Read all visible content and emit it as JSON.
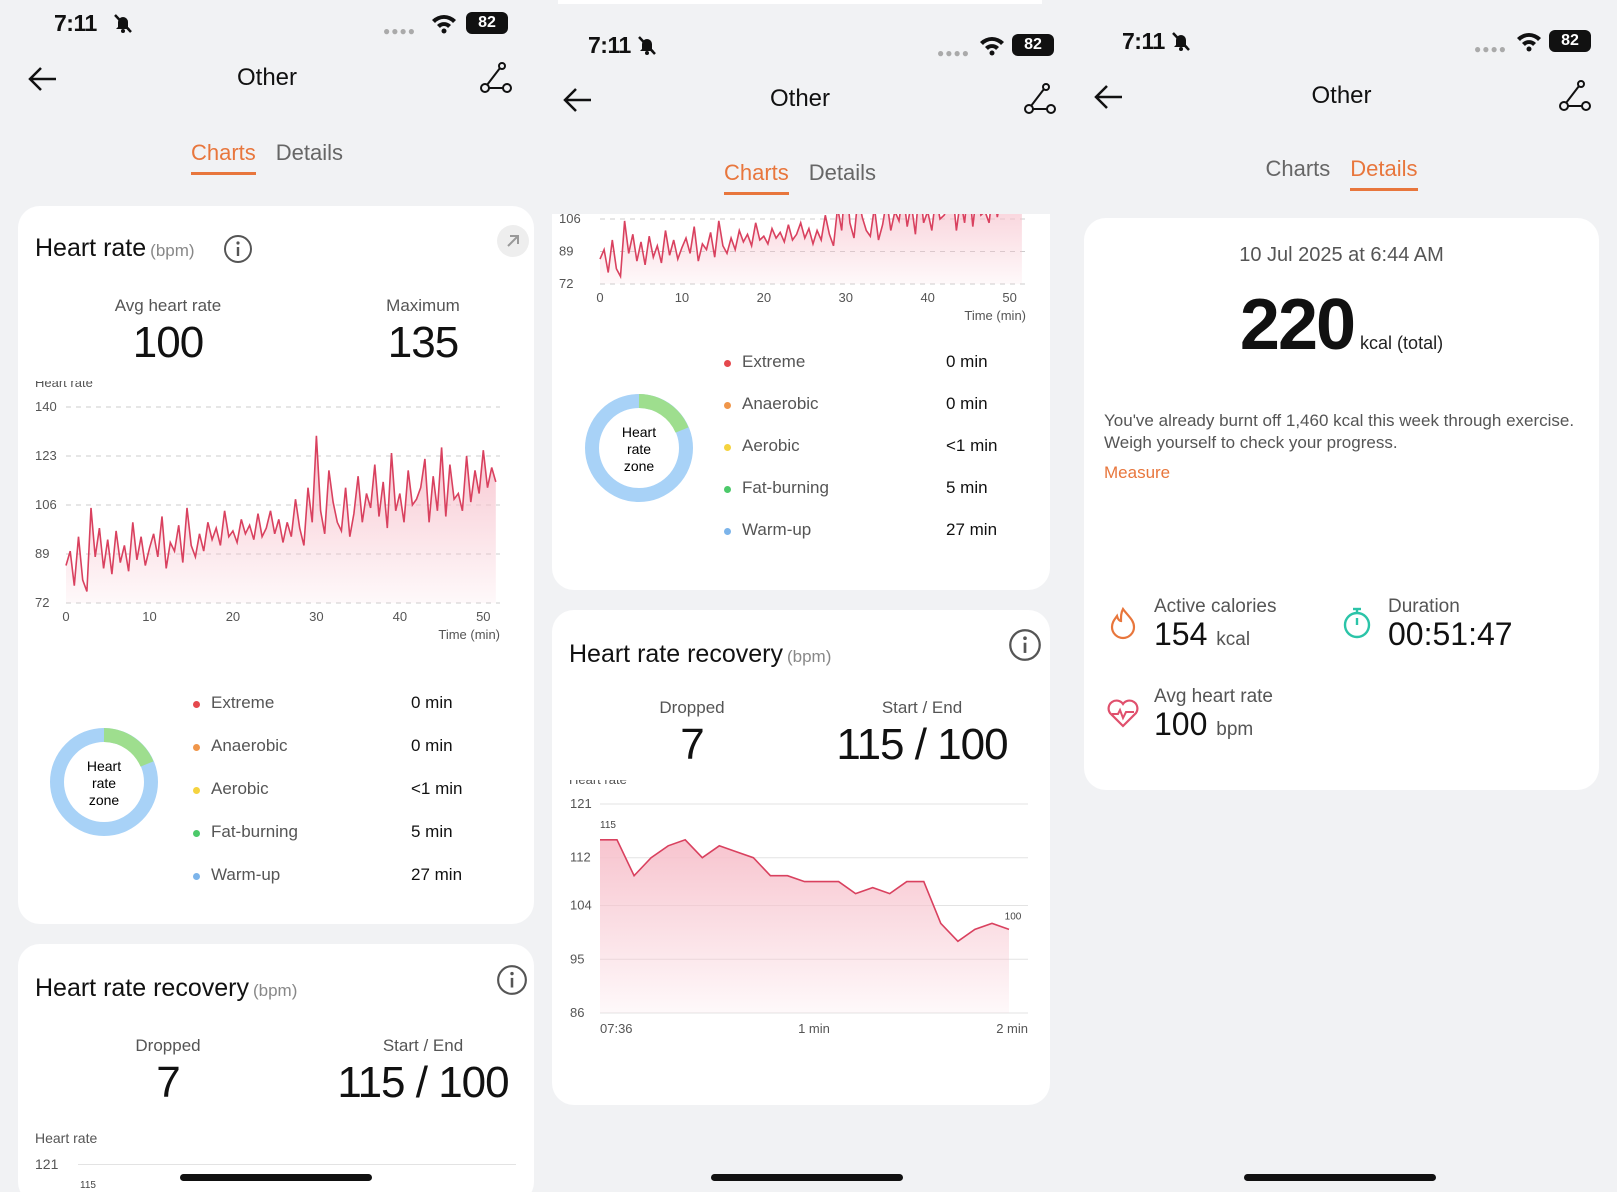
{
  "status": {
    "time": "7:11",
    "battery": "82"
  },
  "nav": {
    "title": "Other"
  },
  "tabs": {
    "charts": "Charts",
    "details": "Details"
  },
  "heart_rate": {
    "title": "Heart rate",
    "unit": "(bpm)",
    "avg_label": "Avg heart rate",
    "avg_value": "100",
    "max_label": "Maximum",
    "max_value": "135",
    "chart_label": "Heart rate",
    "x_axis_unit": "Time (min)"
  },
  "zones": {
    "donut_label_1": "Heart",
    "donut_label_2": "rate",
    "donut_label_3": "zone",
    "items": [
      {
        "name": "Extreme",
        "value": "0 min",
        "color": "#e5484d"
      },
      {
        "name": "Anaerobic",
        "value": "0 min",
        "color": "#f0964a"
      },
      {
        "name": "Aerobic",
        "value": "<1 min",
        "color": "#f5d33f"
      },
      {
        "name": "Fat-burning",
        "value": "5 min",
        "color": "#4cc96a"
      },
      {
        "name": "Warm-up",
        "value": "27 min",
        "color": "#7cb4ea"
      }
    ]
  },
  "recovery": {
    "title": "Heart rate recovery",
    "unit": "(bpm)",
    "dropped_label": "Dropped",
    "dropped_value": "7",
    "startend_label": "Start / End",
    "startend_value": "115 / 100",
    "chart_label": "Heart rate",
    "start_annotation": "115",
    "end_annotation": "100",
    "x_labels": [
      "07:36",
      "1 min",
      "2 min"
    ]
  },
  "details": {
    "date": "10 Jul 2025 at 6:44 AM",
    "total_kcal": "220",
    "total_unit": "kcal (total)",
    "progress_text": "You've already burnt off 1,460 kcal this week through exercise. Weigh yourself to check your progress.",
    "measure_link": "Measure",
    "active_label": "Active calories",
    "active_value": "154",
    "active_unit": "kcal",
    "duration_label": "Duration",
    "duration_value": "00:51:47",
    "avg_hr_label": "Avg heart rate",
    "avg_hr_value": "100",
    "avg_hr_unit": "bpm"
  },
  "colors": {
    "accent": "#e8763c",
    "line": "#d9415f",
    "fill": "#f7c1cc"
  },
  "chart_data": [
    {
      "type": "area",
      "title": "Heart rate",
      "ylabel": "Heart rate",
      "xlabel": "Time (min)",
      "ylim": [
        72,
        140
      ],
      "yticks": [
        72,
        89,
        106,
        123,
        140
      ],
      "xlim": [
        0,
        52
      ],
      "xticks": [
        0,
        10,
        20,
        30,
        40,
        50
      ],
      "grid": true,
      "series": [
        {
          "x": [
            0,
            0.5,
            1,
            1.5,
            2,
            2.5,
            3,
            3.5,
            4,
            4.5,
            5,
            5.5,
            6,
            6.5,
            7,
            7.5,
            8,
            8.5,
            9,
            9.5,
            10,
            10.5,
            11,
            11.5,
            12,
            12.5,
            13,
            13.5,
            14,
            14.5,
            15,
            15.5,
            16,
            16.5,
            17,
            17.5,
            18,
            18.5,
            19,
            19.5,
            20,
            20.5,
            21,
            21.5,
            22,
            22.5,
            23,
            23.5,
            24,
            24.5,
            25,
            25.5,
            26,
            26.5,
            27,
            27.5,
            28,
            28.5,
            29,
            29.5,
            30,
            30.5,
            31,
            31.5,
            32,
            32.5,
            33,
            33.5,
            34,
            34.5,
            35,
            35.5,
            36,
            36.5,
            37,
            37.5,
            38,
            38.5,
            39,
            39.5,
            40,
            40.5,
            41,
            41.5,
            42,
            42.5,
            43,
            43.5,
            44,
            44.5,
            45,
            45.5,
            46,
            46.5,
            47,
            47.5,
            48,
            48.5,
            49,
            49.5,
            50,
            50.5,
            51,
            51.5
          ],
          "y": [
            85,
            90,
            78,
            95,
            80,
            76,
            105,
            88,
            98,
            84,
            94,
            82,
            97,
            86,
            92,
            83,
            100,
            87,
            95,
            85,
            91,
            96,
            88,
            102,
            84,
            93,
            90,
            99,
            86,
            105,
            92,
            88,
            96,
            90,
            100,
            94,
            98,
            92,
            104,
            95,
            97,
            93,
            101,
            96,
            99,
            94,
            103,
            95,
            98,
            104,
            96,
            101,
            93,
            100,
            95,
            108,
            98,
            92,
            112,
            100,
            130,
            104,
            96,
            118,
            107,
            100,
            97,
            112,
            95,
            103,
            116,
            100,
            110,
            105,
            120,
            102,
            114,
            98,
            124,
            104,
            110,
            100,
            118,
            106,
            108,
            112,
            122,
            100,
            116,
            104,
            126,
            102,
            120,
            108,
            110,
            104,
            123,
            107,
            118,
            110,
            125,
            112,
            119,
            114
          ]
        }
      ]
    },
    {
      "type": "area",
      "title": "Heart rate recovery",
      "ylabel": "Heart rate",
      "ylim": [
        86,
        121
      ],
      "yticks": [
        86,
        95,
        104,
        112,
        121
      ],
      "x_labels": [
        "07:36",
        "1 min",
        "2 min"
      ],
      "grid": true,
      "series": [
        {
          "values": [
            115,
            115,
            109,
            112,
            114,
            115,
            112,
            114,
            113,
            112,
            109,
            109,
            108,
            108,
            108,
            106,
            107,
            106,
            108,
            108,
            101,
            98,
            100,
            101,
            100
          ]
        }
      ]
    }
  ]
}
